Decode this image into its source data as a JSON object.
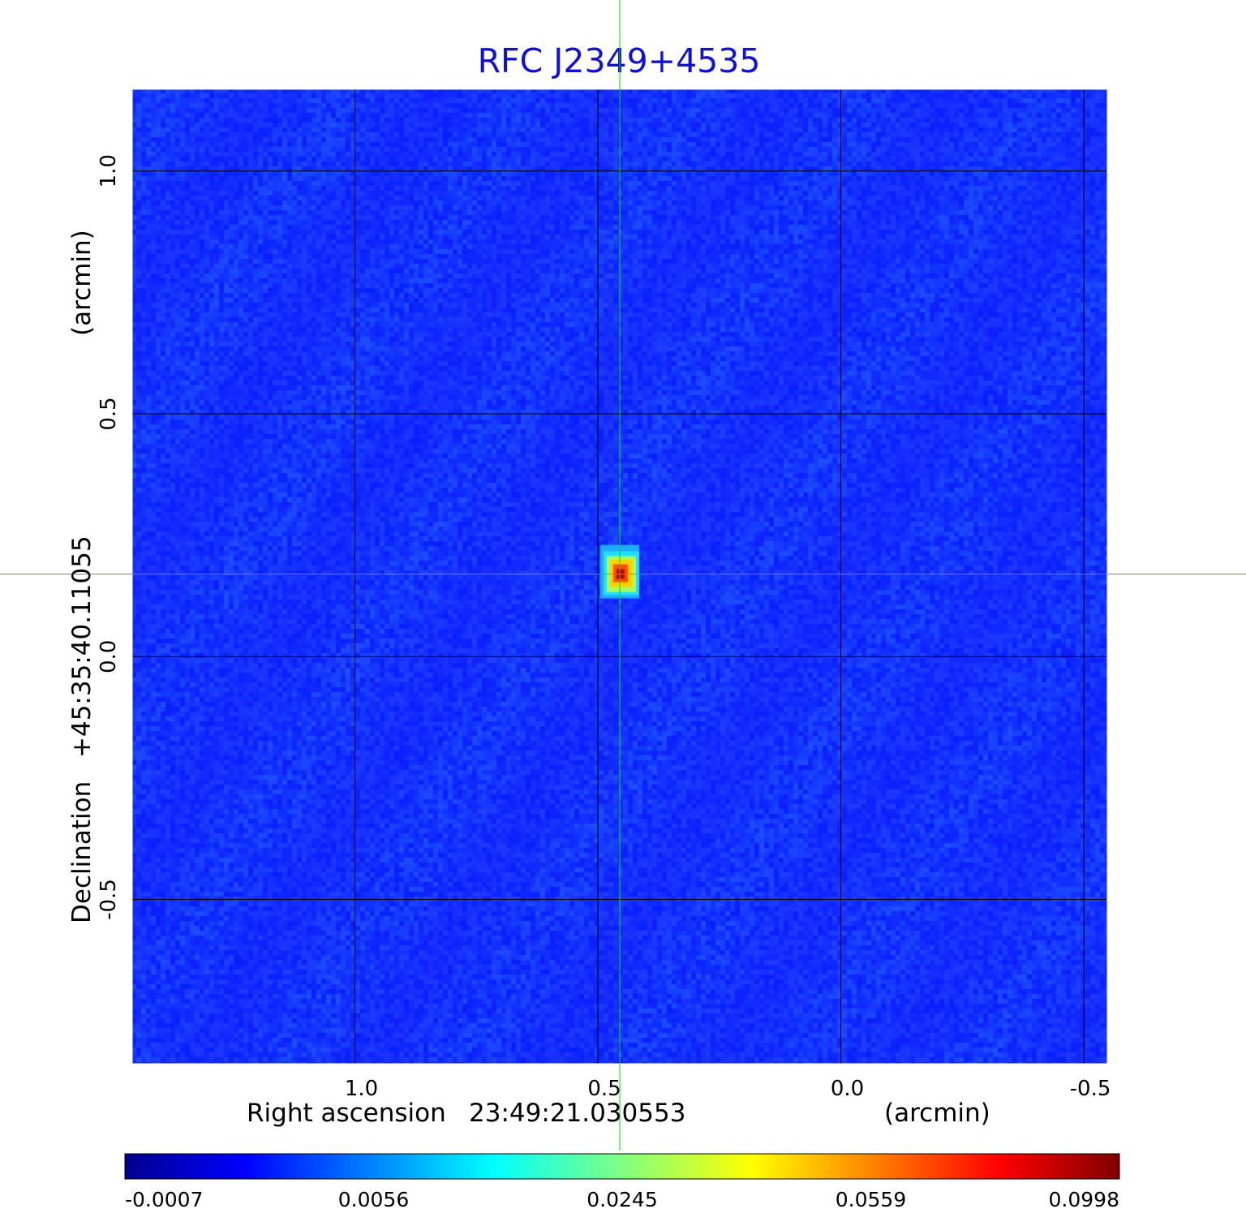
{
  "chart_data": {
    "type": "heatmap",
    "title": "RFC J2349+4535",
    "xlabel": {
      "prefix": "Right ascension",
      "center": "23:49:21.030553",
      "unit": "(arcmin)"
    },
    "ylabel": {
      "prefix": "Declination",
      "center": "+45:35:40.11055",
      "unit": "(arcmin)"
    },
    "x_ticks": [
      "1.0",
      "0.5",
      "0.0",
      "-0.5"
    ],
    "y_ticks": [
      "1.0",
      "0.5",
      "0.0",
      "-0.5"
    ],
    "xlim": [
      1.46,
      -0.55
    ],
    "ylim": [
      -0.84,
      1.17
    ],
    "grid": true,
    "crosshair": {
      "ra_offset": 0.455,
      "dec_offset": 0.17,
      "color": "#00dd00"
    },
    "source_peak": {
      "ra_offset": 0.455,
      "dec_offset": 0.17,
      "value": 0.0998
    },
    "colormap": "jet",
    "colorbar": {
      "orientation": "horizontal",
      "placement": "bottom",
      "ticks": [
        "-0.0007",
        "0.0056",
        "0.0245",
        "0.0559",
        "0.0998"
      ],
      "min": -0.0007,
      "max": 0.0998
    }
  }
}
